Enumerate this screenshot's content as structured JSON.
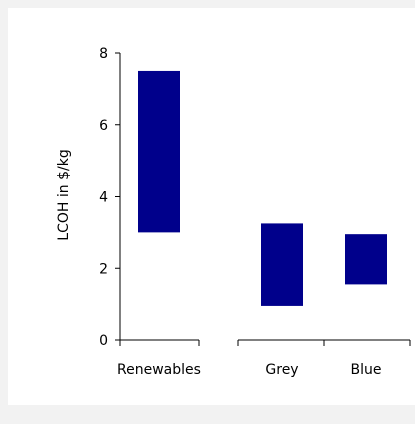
{
  "chart_data": {
    "type": "bar",
    "subtype": "floating-range",
    "title": "",
    "xlabel": "",
    "ylabel": "LCOH in $/kg",
    "ylim": [
      0,
      8
    ],
    "yticks": [
      "0",
      "2",
      "4",
      "6",
      "8"
    ],
    "categories": [
      "Renewables",
      "Grey",
      "Blue"
    ],
    "series": [
      {
        "low": [
          3.0,
          0.95,
          1.55
        ],
        "high": [
          7.5,
          3.25,
          2.95
        ]
      }
    ],
    "grid": false,
    "legend": "none",
    "bar_color": "#00008B",
    "axis_color": "#000000",
    "background_color": "#F2F2F2"
  }
}
